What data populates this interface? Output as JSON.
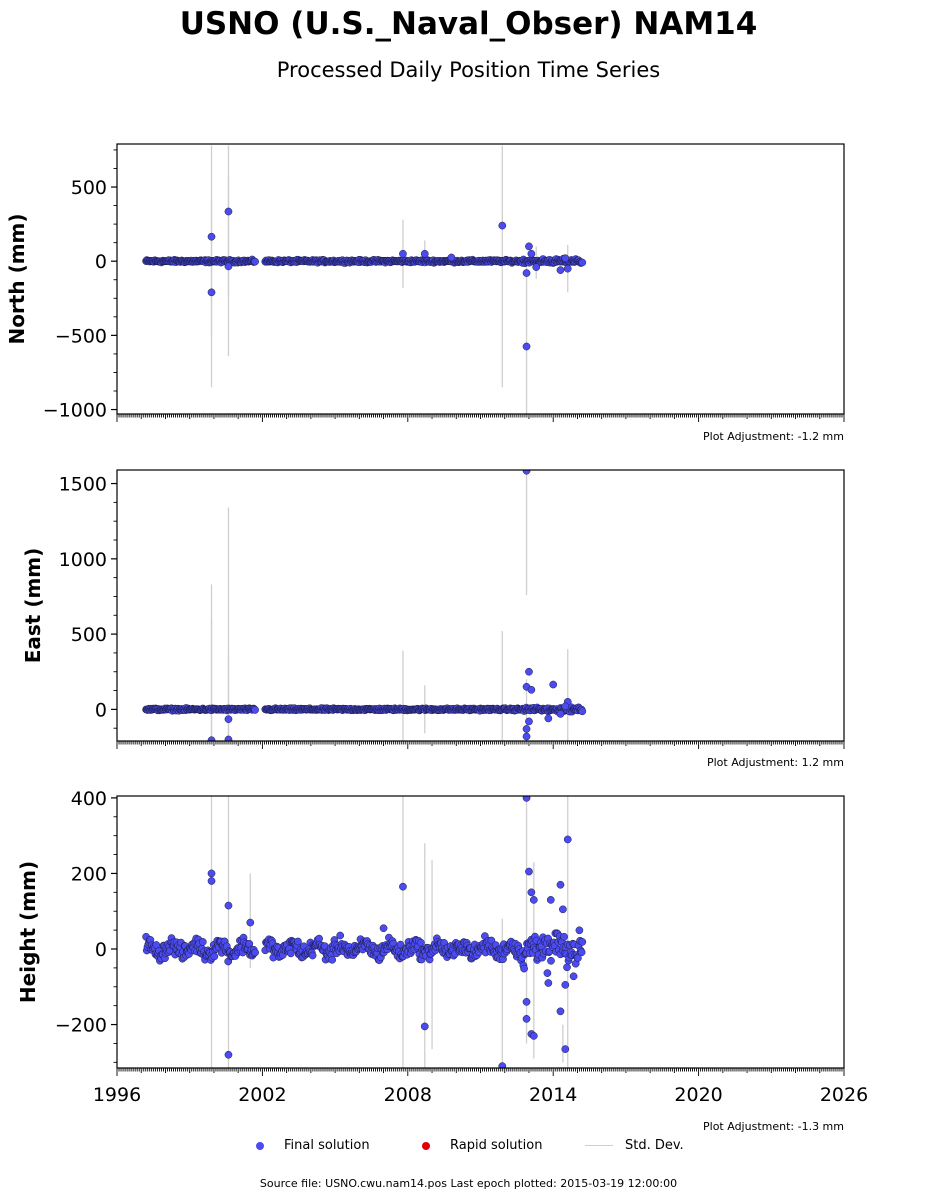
{
  "title": "USNO (U.S._Naval_Obser) NAM14",
  "subtitle": "Processed Daily Position Time Series",
  "legend": {
    "final": "Final solution",
    "rapid": "Rapid solution",
    "std": "Std. Dev."
  },
  "footer": "Source file: USNO.cwu.nam14.pos  Last epoch plotted: 2015-03-19 12:00:00",
  "colors": {
    "final": "#4b4bf0",
    "rapid": "#e00000",
    "std": "#cfcfcf"
  },
  "chart_data": [
    {
      "type": "scatter",
      "ylabel": "North (mm)",
      "adjustment": "Plot Adjustment: -1.2 mm",
      "xlim": [
        1996,
        2026
      ],
      "ylim": [
        -1030,
        790
      ],
      "yticks": [
        -1000,
        -500,
        0,
        500
      ],
      "baseline": {
        "x_start": 1997.2,
        "x_end": 2015.2,
        "gaps": [
          [
            2001.7,
            2002.1
          ]
        ],
        "noise": 6
      },
      "outliers": [
        [
          1999.9,
          165
        ],
        [
          1999.9,
          -210
        ],
        [
          2000.6,
          335
        ],
        [
          2000.6,
          -35
        ],
        [
          2007.8,
          50
        ],
        [
          2008.7,
          50
        ],
        [
          2009.8,
          25
        ],
        [
          2011.9,
          240
        ],
        [
          2012.9,
          -575
        ],
        [
          2012.9,
          -80
        ],
        [
          2013.0,
          100
        ],
        [
          2013.1,
          50
        ],
        [
          2013.3,
          -40
        ],
        [
          2014.3,
          -60
        ],
        [
          2014.6,
          -50
        ],
        [
          2014.5,
          20
        ]
      ],
      "std_bars": [
        [
          1999.9,
          -850,
          780
        ],
        [
          1999.9,
          -500,
          420
        ],
        [
          2000.6,
          -640,
          780
        ],
        [
          2000.6,
          -230,
          570
        ],
        [
          2007.8,
          -180,
          280
        ],
        [
          2008.7,
          -40,
          140
        ],
        [
          2011.9,
          -850,
          780
        ],
        [
          2012.9,
          -1030,
          0
        ],
        [
          2013.3,
          -120,
          100
        ],
        [
          2014.6,
          -210,
          110
        ]
      ]
    },
    {
      "type": "scatter",
      "ylabel": "East (mm)",
      "adjustment": "Plot Adjustment: 1.2 mm",
      "xlim": [
        1996,
        2026
      ],
      "ylim": [
        -210,
        1590
      ],
      "yticks": [
        0,
        500,
        1000,
        1500
      ],
      "baseline": {
        "x_start": 1997.2,
        "x_end": 2015.2,
        "gaps": [
          [
            2001.7,
            2002.1
          ]
        ],
        "noise": 5
      },
      "outliers": [
        [
          1999.9,
          -205
        ],
        [
          2000.6,
          -65
        ],
        [
          2000.6,
          -200
        ],
        [
          2012.9,
          1585
        ],
        [
          2012.9,
          -180
        ],
        [
          2012.9,
          150
        ],
        [
          2013.0,
          250
        ],
        [
          2013.1,
          130
        ],
        [
          2012.9,
          -130
        ],
        [
          2013.0,
          -80
        ],
        [
          2013.8,
          -60
        ],
        [
          2014.0,
          165
        ],
        [
          2014.6,
          50
        ],
        [
          2014.3,
          -30
        ],
        [
          2014.5,
          20
        ]
      ],
      "std_bars": [
        [
          1999.9,
          -210,
          830
        ],
        [
          1999.9,
          -210,
          600
        ],
        [
          2000.6,
          -210,
          1340
        ],
        [
          2000.6,
          -210,
          360
        ],
        [
          2007.8,
          -210,
          390
        ],
        [
          2008.7,
          -160,
          160
        ],
        [
          2011.9,
          -210,
          520
        ],
        [
          2012.9,
          760,
          1590
        ],
        [
          2012.9,
          -210,
          200
        ],
        [
          2014.6,
          -210,
          400
        ]
      ]
    },
    {
      "type": "scatter",
      "ylabel": "Height (mm)",
      "adjustment": "Plot Adjustment: -1.3 mm",
      "xlim": [
        1996,
        2026
      ],
      "xticks": [
        1996,
        2002,
        2008,
        2014,
        2020,
        2026
      ],
      "ylim": [
        -315,
        405
      ],
      "yticks": [
        -200,
        0,
        200,
        400
      ],
      "baseline": {
        "x_start": 1997.2,
        "x_end": 2015.2,
        "gaps": [
          [
            2001.7,
            2002.1
          ]
        ],
        "noise": 15,
        "wave": 12
      },
      "outliers": [
        [
          1999.9,
          200
        ],
        [
          1999.9,
          180
        ],
        [
          2000.6,
          115
        ],
        [
          2000.6,
          -280
        ],
        [
          2001.5,
          70
        ],
        [
          2007.0,
          55
        ],
        [
          2007.8,
          165
        ],
        [
          2008.7,
          -205
        ],
        [
          2011.9,
          -310
        ],
        [
          2012.9,
          400
        ],
        [
          2012.9,
          -185
        ],
        [
          2012.9,
          -140
        ],
        [
          2013.0,
          205
        ],
        [
          2013.1,
          150
        ],
        [
          2013.2,
          130
        ],
        [
          2013.1,
          -225
        ],
        [
          2013.2,
          -230
        ],
        [
          2013.9,
          130
        ],
        [
          2013.8,
          -90
        ],
        [
          2014.3,
          170
        ],
        [
          2014.4,
          105
        ],
        [
          2014.3,
          -165
        ],
        [
          2014.5,
          -265
        ],
        [
          2014.6,
          290
        ],
        [
          2014.5,
          -95
        ]
      ],
      "std_bars": [
        [
          1999.9,
          -315,
          405
        ],
        [
          2000.6,
          -315,
          405
        ],
        [
          2001.5,
          -50,
          200
        ],
        [
          2007.8,
          -315,
          405
        ],
        [
          2008.7,
          -315,
          280
        ],
        [
          2009.0,
          -265,
          235
        ],
        [
          2011.9,
          -315,
          80
        ],
        [
          2012.9,
          -250,
          405
        ],
        [
          2013.2,
          -290,
          230
        ],
        [
          2014.4,
          -300,
          -200
        ],
        [
          2014.6,
          -315,
          405
        ]
      ]
    }
  ]
}
